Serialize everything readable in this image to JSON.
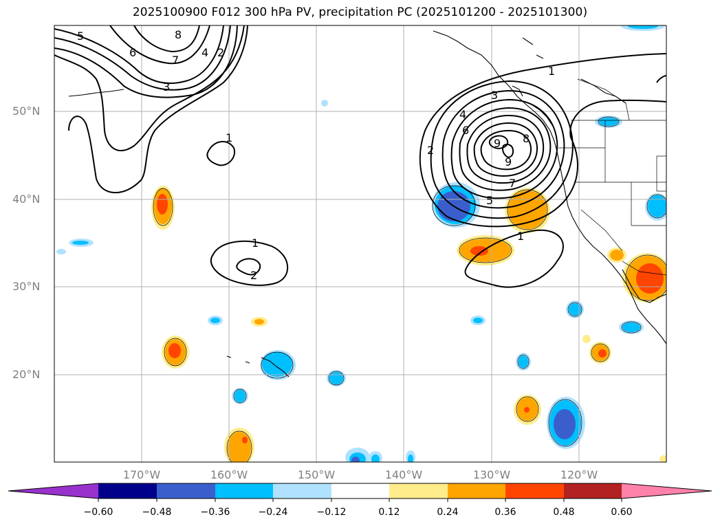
{
  "title": "2025100900 F012 300 hPa PV, precipitation PC (2025101200 - 2025101300)",
  "lat_labels": [
    "50°N",
    "40°N",
    "30°N",
    "20°N"
  ],
  "lon_labels": [
    "170°W",
    "160°W",
    "150°W",
    "140°W",
    "130°W",
    "120°W"
  ],
  "colorbar": {
    "tick_labels": [
      "−0.60",
      "−0.48",
      "−0.36",
      "−0.24",
      "−0.12",
      "0.12",
      "0.24",
      "0.36",
      "0.48",
      "0.60"
    ],
    "colors": {
      "lt_neg060": "#9932cc",
      "neg060_neg048": "#00008b",
      "neg048_neg036": "#3a5fcd",
      "neg036_neg024": "#00bfff",
      "neg024_neg012": "#b0e2ff",
      "neg012_012": "#ffffff",
      "p012_024": "#ffec8b",
      "p024_036": "#ffa500",
      "p036_048": "#ff4500",
      "p048_060": "#b22222",
      "gt_060": "#ff82ab"
    }
  },
  "pv_contour_labels": [
    "5",
    "8",
    "6",
    "7",
    "4",
    "2",
    "3",
    "1",
    "1",
    "2",
    "1",
    "3",
    "4",
    "6",
    "2",
    "9",
    "8",
    "9",
    "7",
    "5",
    "1"
  ]
}
